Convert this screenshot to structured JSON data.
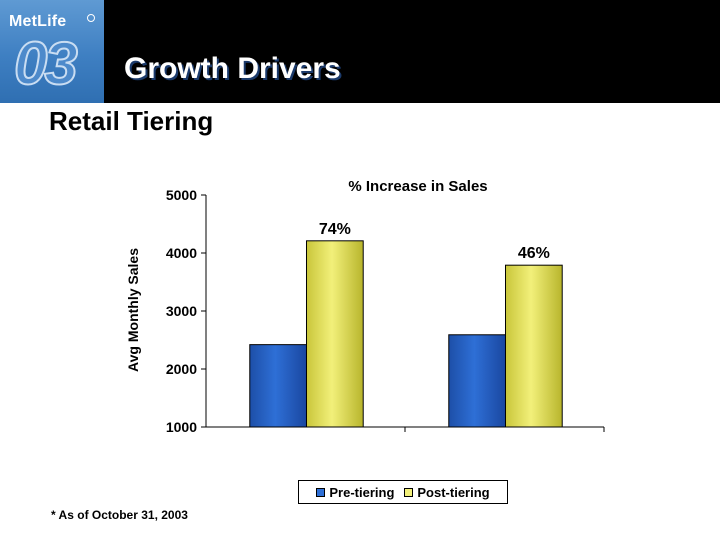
{
  "header": {
    "brand": "MetLife",
    "section_number": "03",
    "title": "Growth Drivers"
  },
  "slide": {
    "subtitle": "Retail Tiering",
    "footnote": "* As of October 31, 2003"
  },
  "colors": {
    "pre_tiering": "#2e6fd6",
    "post_tiering": "#f2f07a"
  },
  "chart_data": {
    "type": "bar",
    "title": "% Increase in Sales",
    "ylabel": "Avg Monthly Sales",
    "xlabel": "",
    "ylim": [
      1000,
      5000
    ],
    "yticks": [
      1000,
      2000,
      3000,
      4000,
      5000
    ],
    "categories": [
      "",
      ""
    ],
    "series": [
      {
        "name": "Pre-tiering",
        "values": [
          2420,
          2590
        ]
      },
      {
        "name": "Post-tiering",
        "values": [
          4210,
          3790
        ]
      }
    ],
    "annotations": [
      "74%",
      "46%"
    ],
    "legend": "bottom",
    "grid": false
  }
}
